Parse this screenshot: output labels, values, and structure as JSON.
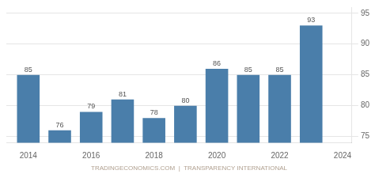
{
  "chart_data": {
    "type": "bar",
    "x": [
      2014,
      2015,
      2016,
      2017,
      2018,
      2019,
      2020,
      2021,
      2022,
      2023
    ],
    "values": [
      85,
      76,
      79,
      81,
      78,
      80,
      86,
      85,
      85,
      93
    ],
    "color": "#4a7eaa",
    "xlim": [
      2013.3,
      2024.3
    ],
    "xticks": [
      2014,
      2016,
      2018,
      2020,
      2022,
      2024
    ],
    "ylim": [
      74,
      96
    ],
    "yticks": [
      75,
      80,
      85,
      90,
      95
    ],
    "grid": "y",
    "data_labels": true,
    "annotations": [
      "TRADINGECONOMICS.COM  |  TRANSPARENCY INTERNATIONAL"
    ]
  }
}
